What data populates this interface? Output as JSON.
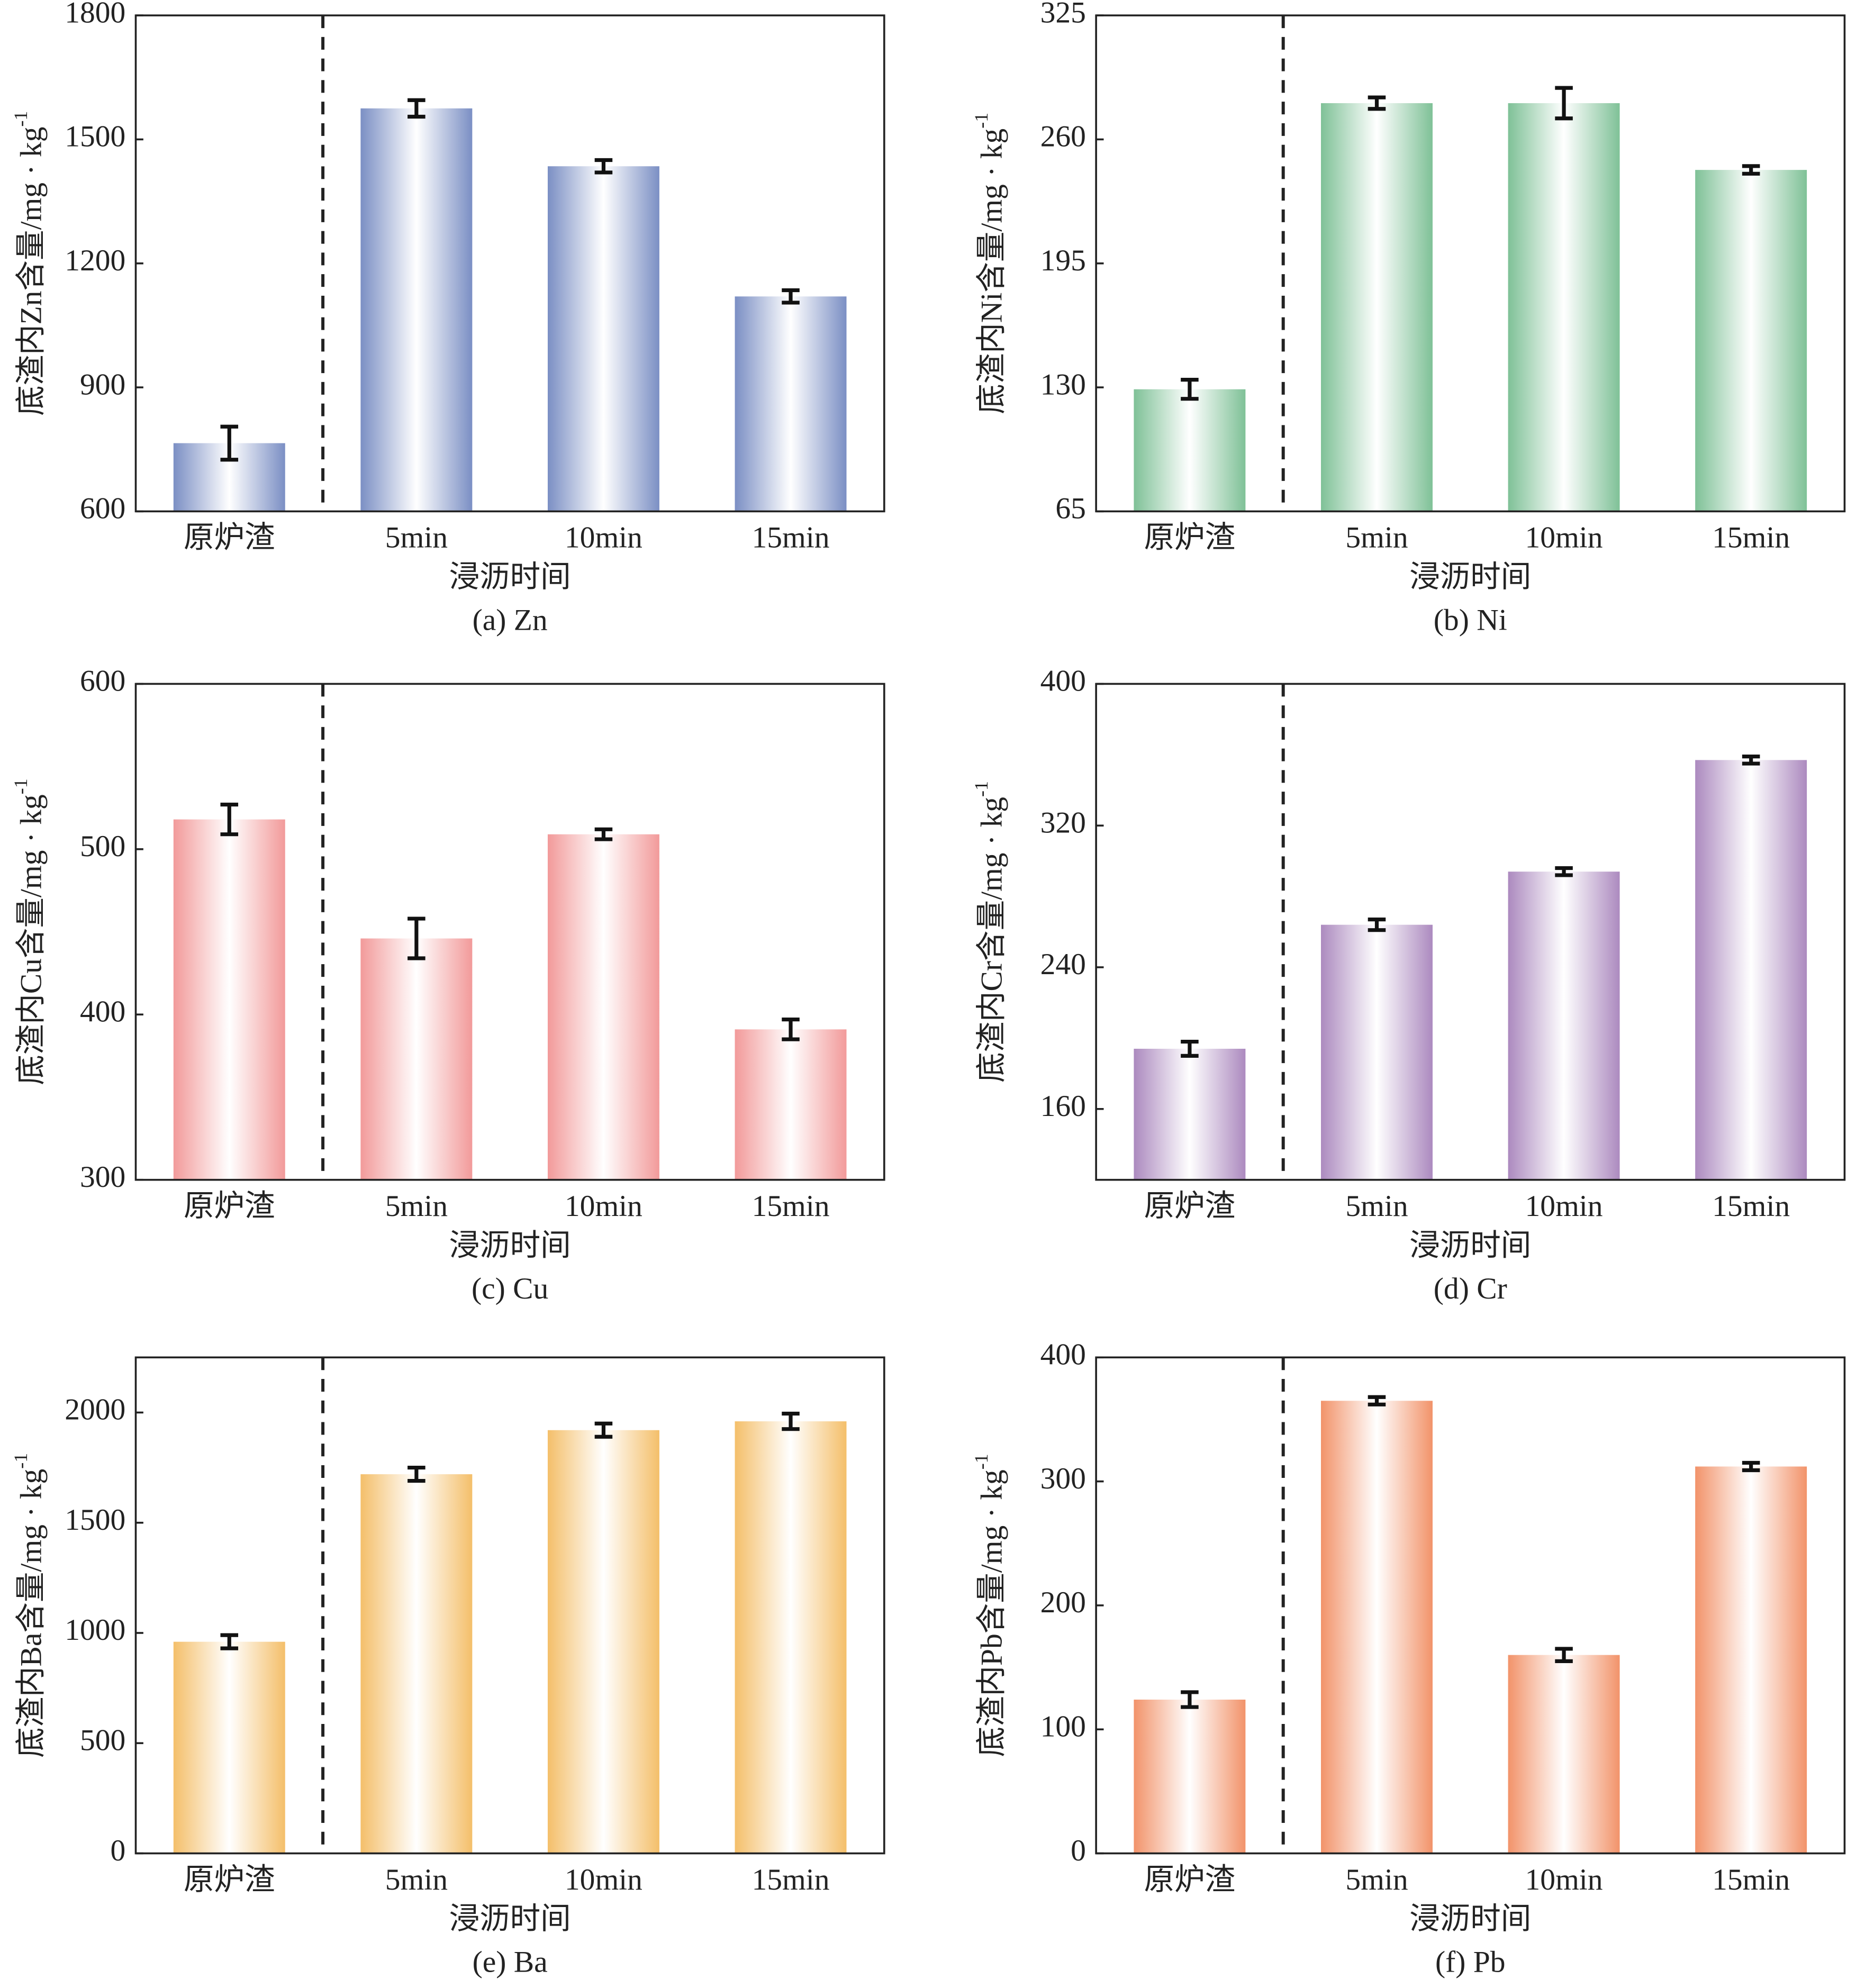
{
  "chart_data": [
    {
      "type": "bar",
      "title": "(a) Zn",
      "ylabel": "底渣内Zn含量/mg · kg",
      "ylabel_sup": "-1",
      "xlabel": "浸沥时间",
      "categories": [
        "原炉渣",
        "5min",
        "10min",
        "15min"
      ],
      "values": [
        765,
        1575,
        1435,
        1120
      ],
      "errors": [
        40,
        20,
        15,
        15
      ],
      "color": "#7b8fc4",
      "ylim": [
        600,
        1800
      ],
      "yticks": [
        600,
        900,
        1200,
        1500,
        1800
      ]
    },
    {
      "type": "bar",
      "title": "(b) Ni",
      "ylabel": "底渣内Ni含量/mg · kg",
      "ylabel_sup": "-1",
      "xlabel": "浸沥时间",
      "categories": [
        "原炉渣",
        "5min",
        "10min",
        "15min"
      ],
      "values": [
        129,
        279,
        279,
        244
      ],
      "errors": [
        5,
        3,
        8,
        2
      ],
      "color": "#7fc197",
      "ylim": [
        65,
        325
      ],
      "yticks": [
        65,
        130,
        195,
        260,
        325
      ]
    },
    {
      "type": "bar",
      "title": "(c) Cu",
      "ylabel": "底渣内Cu含量/mg · kg",
      "ylabel_sup": "-1",
      "xlabel": "浸沥时间",
      "categories": [
        "原炉渣",
        "5min",
        "10min",
        "15min"
      ],
      "values": [
        518,
        446,
        509,
        391
      ],
      "errors": [
        9,
        12,
        3,
        6
      ],
      "color": "#f29a9a",
      "ylim": [
        300,
        600
      ],
      "yticks": [
        300,
        400,
        500,
        600
      ]
    },
    {
      "type": "bar",
      "title": "(d) Cr",
      "ylabel": "底渣内Cr含量/mg · kg",
      "ylabel_sup": "-1",
      "xlabel": "浸沥时间",
      "categories": [
        "原炉渣",
        "5min",
        "10min",
        "15min"
      ],
      "values": [
        194,
        264,
        294,
        357
      ],
      "errors": [
        4,
        3,
        2,
        2
      ],
      "color": "#ac8abf",
      "ylim": [
        120,
        400
      ],
      "yticks": [
        160,
        240,
        320,
        400
      ]
    },
    {
      "type": "bar",
      "title": "(e) Ba",
      "ylabel": "底渣内Ba含量/mg · kg",
      "ylabel_sup": "-1",
      "xlabel": "浸沥时间",
      "categories": [
        "原炉渣",
        "5min",
        "10min",
        "15min"
      ],
      "values": [
        960,
        1720,
        1920,
        1960
      ],
      "errors": [
        30,
        30,
        30,
        35
      ],
      "color": "#f4bf6a",
      "ylim": [
        0,
        2250
      ],
      "yticks": [
        0,
        500,
        1000,
        1500,
        2000
      ]
    },
    {
      "type": "bar",
      "title": "(f) Pb",
      "ylabel": "底渣内Pb含量/mg · kg",
      "ylabel_sup": "-1",
      "xlabel": "浸沥时间",
      "categories": [
        "原炉渣",
        "5min",
        "10min",
        "15min"
      ],
      "values": [
        124,
        365,
        160,
        312
      ],
      "errors": [
        6,
        3,
        5,
        3
      ],
      "color": "#f2936a",
      "ylim": [
        0,
        400
      ],
      "yticks": [
        0,
        100,
        200,
        300,
        400
      ]
    }
  ]
}
